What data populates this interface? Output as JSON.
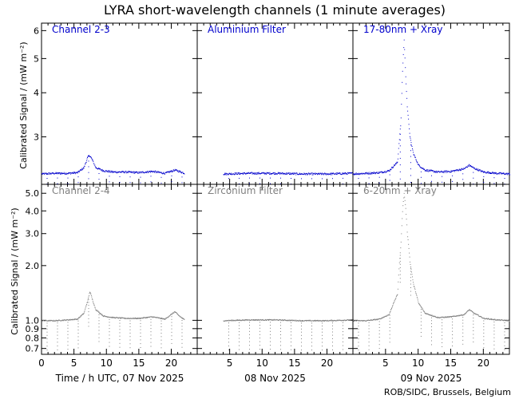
{
  "title": "LYRA short-wavelength channels (1 minute averages)",
  "ylabel": "Calibrated Signal / (mW m⁻²)",
  "credit": "ROB/SIDC, Brussels, Belgium",
  "x_tick_labels": [
    "0",
    "5",
    "10",
    "15",
    "20"
  ],
  "x_date_labels": [
    "Time / h UTC, 07 Nov 2025",
    "08 Nov 2025",
    "09 Nov 2025"
  ],
  "colors": {
    "top_series": "#0000cc",
    "bottom_series": "#808080",
    "frame": "#000000"
  },
  "chart_data": [
    {
      "type": "scatter",
      "row": "top",
      "yscale": "log",
      "ylim": [
        2.2,
        6.3
      ],
      "y_ticks": [
        3,
        4,
        5,
        6
      ],
      "y_tick_labels": [
        "3",
        "4",
        "5",
        "6"
      ],
      "xlim_hours": [
        0,
        24
      ],
      "xlabel": "Time / h UTC",
      "color": "#0000cc",
      "panels": [
        {
          "label": "Channel 2-3",
          "date": "07 Nov 2025",
          "data_hours": [
            0,
            22
          ],
          "baseline": 2.36,
          "points": [
            [
              0,
              2.36
            ],
            [
              2,
              2.37
            ],
            [
              4,
              2.37
            ],
            [
              5.5,
              2.38
            ],
            [
              6.5,
              2.46
            ],
            [
              7.1,
              2.64
            ],
            [
              7.4,
              2.66
            ],
            [
              7.8,
              2.58
            ],
            [
              8.3,
              2.46
            ],
            [
              9.5,
              2.41
            ],
            [
              11,
              2.39
            ],
            [
              13,
              2.39
            ],
            [
              15,
              2.38
            ],
            [
              17,
              2.4
            ],
            [
              19,
              2.37
            ],
            [
              20.5,
              2.42
            ],
            [
              21.2,
              2.4
            ],
            [
              22,
              2.37
            ]
          ]
        },
        {
          "label": "Aluminium Filter",
          "date": "08 Nov 2025",
          "data_hours": [
            4,
            24
          ],
          "baseline": 2.36,
          "points": [
            [
              4,
              2.36
            ],
            [
              8,
              2.37
            ],
            [
              12,
              2.37
            ],
            [
              16,
              2.36
            ],
            [
              20,
              2.36
            ],
            [
              24,
              2.37
            ]
          ]
        },
        {
          "label": "17-80nm + Xray",
          "date": "09 Nov 2025",
          "data_hours": [
            0,
            24
          ],
          "baseline": 2.36,
          "points": [
            [
              0,
              2.36
            ],
            [
              2,
              2.37
            ],
            [
              4,
              2.38
            ],
            [
              5.5,
              2.41
            ],
            [
              6.8,
              2.55
            ],
            [
              7.3,
              3.3
            ],
            [
              7.6,
              4.8
            ],
            [
              7.8,
              5.65
            ],
            [
              8.0,
              4.6
            ],
            [
              8.3,
              3.6
            ],
            [
              8.7,
              3.0
            ],
            [
              9.2,
              2.7
            ],
            [
              10,
              2.5
            ],
            [
              11,
              2.42
            ],
            [
              13,
              2.39
            ],
            [
              15,
              2.4
            ],
            [
              17,
              2.44
            ],
            [
              17.8,
              2.5
            ],
            [
              18.5,
              2.45
            ],
            [
              20,
              2.39
            ],
            [
              22,
              2.37
            ],
            [
              24,
              2.36
            ]
          ]
        }
      ]
    },
    {
      "type": "scatter",
      "row": "bottom",
      "yscale": "log",
      "ylim": [
        0.65,
        5.6
      ],
      "y_ticks": [
        0.7,
        0.8,
        0.9,
        1.0,
        2.0,
        3.0,
        4.0,
        5.0
      ],
      "y_tick_labels": [
        "0.7",
        "0.8",
        "0.9",
        "1.0",
        "2.0",
        "3.0",
        "4.0",
        "5.0"
      ],
      "xlim_hours": [
        0,
        24
      ],
      "xlabel": "Time / h UTC",
      "color": "#808080",
      "panels": [
        {
          "label": "Channel 2-4",
          "date": "07 Nov 2025",
          "data_hours": [
            0,
            22
          ],
          "baseline": 1.0,
          "points": [
            [
              0,
              1.0
            ],
            [
              2,
              1.0
            ],
            [
              4,
              1.01
            ],
            [
              5.5,
              1.02
            ],
            [
              6.5,
              1.1
            ],
            [
              7.1,
              1.3
            ],
            [
              7.4,
              1.45
            ],
            [
              7.8,
              1.3
            ],
            [
              8.3,
              1.15
            ],
            [
              9.5,
              1.06
            ],
            [
              11,
              1.04
            ],
            [
              13,
              1.03
            ],
            [
              15,
              1.03
            ],
            [
              17,
              1.05
            ],
            [
              19,
              1.02
            ],
            [
              20.5,
              1.12
            ],
            [
              21.2,
              1.06
            ],
            [
              22,
              1.01
            ]
          ]
        },
        {
          "label": "Zirconium Filter",
          "date": "08 Nov 2025",
          "data_hours": [
            4,
            24
          ],
          "baseline": 1.0,
          "points": [
            [
              4,
              1.0
            ],
            [
              8,
              1.01
            ],
            [
              12,
              1.01
            ],
            [
              16,
              1.0
            ],
            [
              20,
              1.0
            ],
            [
              24,
              1.01
            ]
          ]
        },
        {
          "label": "6-20nm + Xray",
          "date": "09 Nov 2025",
          "data_hours": [
            0,
            24
          ],
          "baseline": 1.0,
          "points": [
            [
              0,
              1.0
            ],
            [
              2,
              1.0
            ],
            [
              4,
              1.02
            ],
            [
              5.5,
              1.08
            ],
            [
              6.8,
              1.4
            ],
            [
              7.3,
              2.6
            ],
            [
              7.6,
              4.2
            ],
            [
              7.8,
              5.0
            ],
            [
              8.0,
              4.3
            ],
            [
              8.3,
              3.0
            ],
            [
              8.7,
              2.1
            ],
            [
              9.2,
              1.6
            ],
            [
              10,
              1.25
            ],
            [
              11,
              1.1
            ],
            [
              13,
              1.04
            ],
            [
              15,
              1.05
            ],
            [
              17,
              1.08
            ],
            [
              17.8,
              1.15
            ],
            [
              18.5,
              1.1
            ],
            [
              20,
              1.03
            ],
            [
              22,
              1.01
            ],
            [
              24,
              1.0
            ]
          ]
        }
      ]
    }
  ]
}
